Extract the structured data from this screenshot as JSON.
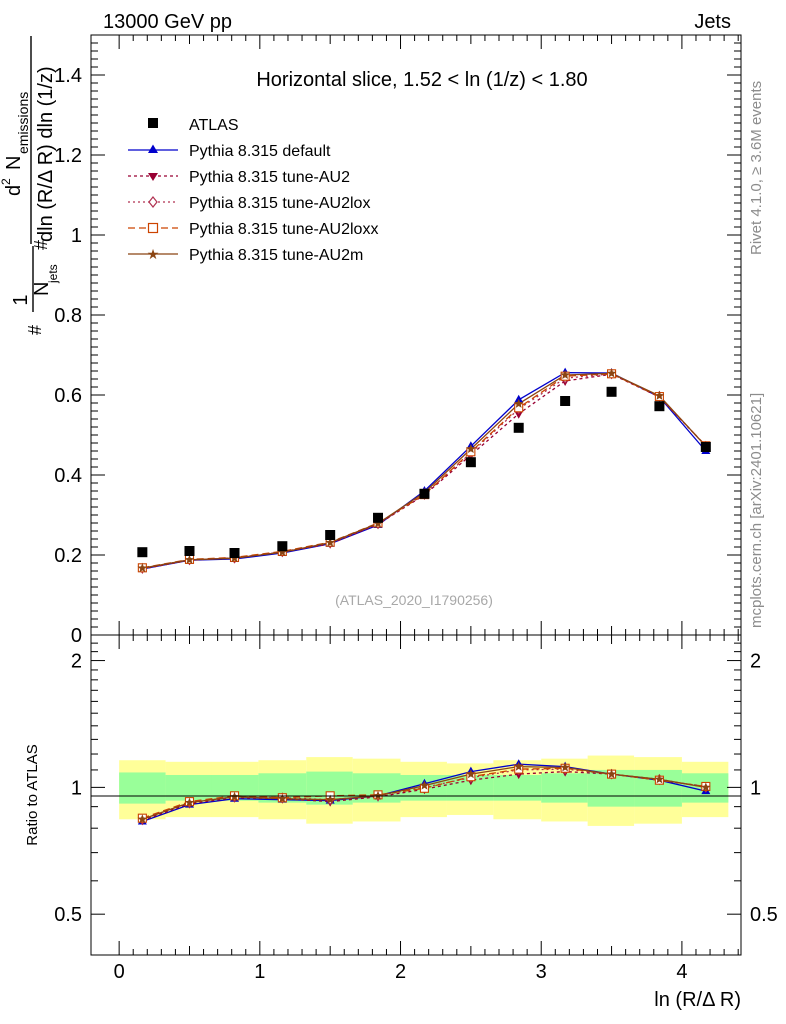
{
  "header": {
    "left": "13000 GeV pp",
    "right": "Jets"
  },
  "side_labels": {
    "rivet": "Rivet 4.1.0, ≥ 3.6M events",
    "mcplots": "mcplots.cern.ch [arXiv:2401.10621]"
  },
  "watermark": "(ATLAS_2020_I1790256)",
  "chart_data": {
    "type": "line",
    "title": "Horizontal slice, 1.52 < ln (1/z) < 1.80",
    "xlabel": "ln (R/Δ R)",
    "ylabel": "#frac{1}{N_{jets}} #frac{d² N_{emissions}}{dln (R/Δ R) dln (1/z)}",
    "ylabel_parts": {
      "hash1": "#",
      "one": "1",
      "njets": "N",
      "njets_sub": "jets",
      "hash2": "#",
      "num": "d",
      "num_sup": "2",
      "num_var": "N",
      "num_sub": "emissions",
      "den": "dln (R/Δ R) dln (1/z)"
    },
    "ratio_ylabel": "Ratio to ATLAS",
    "xlim": [
      -0.2,
      4.42
    ],
    "ylim": [
      0,
      1.5
    ],
    "ratio_ylim": [
      0.4,
      2.3
    ],
    "x_ticks": [
      0,
      1,
      2,
      3,
      4
    ],
    "x_tick_labels": [
      "0",
      "1",
      "2",
      "3",
      "4"
    ],
    "y_ticks": [
      0,
      0.2,
      0.4,
      0.6,
      0.8,
      1,
      1.2,
      1.4
    ],
    "y_tick_labels": [
      "0",
      "0.2",
      "0.4",
      "0.6",
      "0.8",
      "1",
      "1.2",
      "1.4"
    ],
    "ratio_ticks": [
      0.5,
      1,
      2
    ],
    "ratio_tick_labels": [
      "0.5",
      "1",
      "2"
    ],
    "x": [
      0.165,
      0.5,
      0.82,
      1.16,
      1.5,
      1.84,
      2.17,
      2.5,
      2.84,
      3.17,
      3.5,
      3.84,
      4.17
    ],
    "bin_edges": [
      0,
      0.33,
      0.66,
      0.99,
      1.33,
      1.66,
      2.0,
      2.33,
      2.66,
      3.0,
      3.33,
      3.66,
      4.0,
      4.33
    ],
    "atlas": {
      "name": "ATLAS",
      "values": [
        0.207,
        0.21,
        0.205,
        0.222,
        0.25,
        0.293,
        0.353,
        0.432,
        0.518,
        0.585,
        0.608,
        0.572,
        0.47
      ],
      "band_inner": [
        0.085,
        0.07,
        0.07,
        0.08,
        0.09,
        0.08,
        0.07,
        0.07,
        0.07,
        0.08,
        0.1,
        0.1,
        0.08
      ],
      "band_outer": [
        0.16,
        0.15,
        0.15,
        0.16,
        0.18,
        0.17,
        0.15,
        0.14,
        0.16,
        0.17,
        0.19,
        0.18,
        0.15
      ]
    },
    "series": [
      {
        "name": "Pythia 8.315 default",
        "color": "#0000cc",
        "marker": "triangle-up",
        "dash": "",
        "values": [
          0.165,
          0.187,
          0.19,
          0.205,
          0.228,
          0.275,
          0.36,
          0.472,
          0.588,
          0.656,
          0.655,
          0.595,
          0.46
        ],
        "ratio": [
          0.83,
          0.91,
          0.94,
          0.935,
          0.93,
          0.955,
          1.02,
          1.09,
          1.135,
          1.12,
          1.075,
          1.04,
          0.98
        ]
      },
      {
        "name": "Pythia 8.315 tune-AU2",
        "color": "#990033",
        "marker": "triangle-down",
        "dash": "3,3",
        "values": [
          0.165,
          0.187,
          0.193,
          0.207,
          0.228,
          0.277,
          0.35,
          0.45,
          0.553,
          0.635,
          0.652,
          0.595,
          0.473
        ],
        "ratio": [
          0.835,
          0.915,
          0.945,
          0.94,
          0.925,
          0.95,
          0.99,
          1.04,
          1.075,
          1.09,
          1.075,
          1.04,
          1.005
        ]
      },
      {
        "name": "Pythia 8.315 tune-AU2lox",
        "color": "#b03050",
        "marker": "diamond",
        "dash": "2,3",
        "values": [
          0.167,
          0.188,
          0.192,
          0.208,
          0.23,
          0.278,
          0.352,
          0.455,
          0.565,
          0.642,
          0.653,
          0.597,
          0.472
        ],
        "ratio": [
          0.84,
          0.92,
          0.95,
          0.945,
          0.935,
          0.955,
          1.0,
          1.055,
          1.1,
          1.105,
          1.075,
          1.045,
          1.0
        ]
      },
      {
        "name": "Pythia 8.315 tune-AU2loxx",
        "color": "#cc4400",
        "marker": "square-open",
        "dash": "7,4",
        "values": [
          0.168,
          0.189,
          0.194,
          0.209,
          0.232,
          0.28,
          0.351,
          0.458,
          0.568,
          0.647,
          0.653,
          0.596,
          0.473
        ],
        "ratio": [
          0.845,
          0.925,
          0.955,
          0.945,
          0.955,
          0.96,
          0.995,
          1.06,
          1.105,
          1.11,
          1.075,
          1.04,
          1.005
        ]
      },
      {
        "name": "Pythia 8.315 tune-AU2m",
        "color": "#8b4513",
        "marker": "star",
        "dash": "",
        "values": [
          0.167,
          0.188,
          0.192,
          0.207,
          0.231,
          0.279,
          0.356,
          0.465,
          0.578,
          0.65,
          0.654,
          0.598,
          0.472
        ],
        "ratio": [
          0.84,
          0.92,
          0.95,
          0.94,
          0.935,
          0.955,
          1.01,
          1.075,
          1.12,
          1.115,
          1.075,
          1.045,
          1.0
        ]
      }
    ],
    "colors": {
      "atlas": "#000000",
      "band_inner": "#99ff99",
      "band_outer": "#ffff99"
    }
  }
}
